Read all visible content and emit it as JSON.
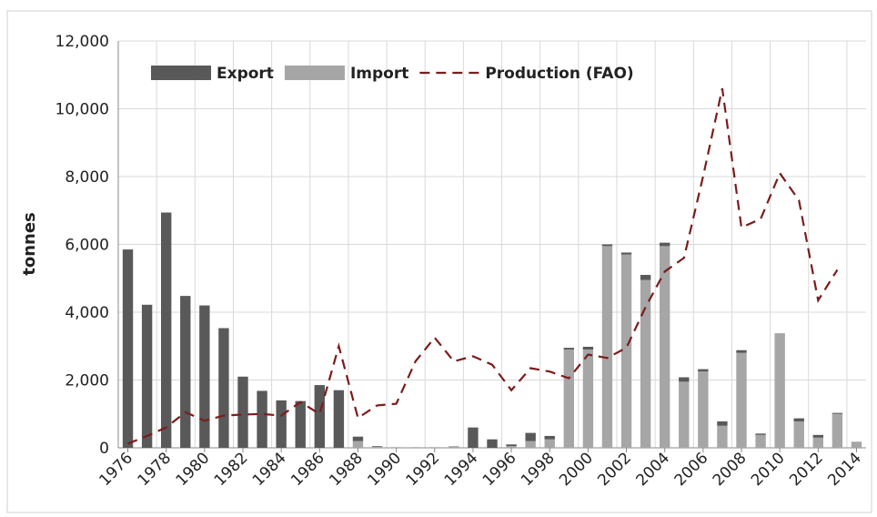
{
  "chart_data": {
    "type": "bar",
    "categories": [
      "1976",
      null,
      "1978",
      null,
      "1980",
      null,
      "1982",
      null,
      "1984",
      null,
      "1986",
      null,
      "1988",
      null,
      "1990",
      null,
      "1992",
      null,
      "1994",
      null,
      "1996",
      null,
      "1998",
      null,
      "2000",
      null,
      "2002",
      null,
      "2004",
      null,
      "2006",
      null,
      "2008",
      null,
      "2010",
      null,
      "2012",
      null,
      "2014"
    ],
    "ylabel": "tonnes",
    "ylim": [
      0,
      12000
    ],
    "yticks": [
      0,
      {
        "value": 2000,
        "label": "2,000"
      },
      {
        "value": 4000,
        "label": "4,000"
      },
      {
        "value": 6000,
        "label": "6,000"
      },
      {
        "value": 8000,
        "label": "8,000"
      },
      {
        "value": 10000,
        "label": "10,000"
      },
      {
        "value": 12000,
        "label": "12,000"
      }
    ],
    "grid": true,
    "legend": "top-left",
    "series": [
      {
        "name": "Import",
        "color": "#a6a6a6",
        "stack": true,
        "values": [
          0,
          0,
          0,
          0,
          0,
          0,
          0,
          0,
          0,
          0,
          0,
          0,
          200,
          30,
          20,
          20,
          20,
          50,
          0,
          0,
          50,
          200,
          250,
          2900,
          2900,
          5950,
          5700,
          4950,
          5950,
          1950,
          2250,
          650,
          2800,
          380,
          3380,
          780,
          300,
          1000,
          180
        ]
      },
      {
        "name": "Export",
        "color": "#595959",
        "stack": true,
        "values": [
          5850,
          4220,
          6940,
          4480,
          4200,
          3530,
          2100,
          1680,
          1400,
          1380,
          1850,
          1700,
          130,
          20,
          0,
          0,
          0,
          0,
          600,
          250,
          50,
          240,
          100,
          50,
          80,
          50,
          60,
          150,
          100,
          130,
          70,
          130,
          80,
          40,
          0,
          90,
          80,
          30,
          0
        ]
      },
      {
        "name": "Production (FAO)",
        "color": "#7b1c1c",
        "type": "line",
        "dashed": true,
        "values": [
          120,
          350,
          600,
          1050,
          800,
          950,
          980,
          1000,
          950,
          1350,
          1000,
          3000,
          880,
          1250,
          1300,
          2550,
          3250,
          2550,
          2700,
          2450,
          1700,
          2350,
          2250,
          2050,
          2750,
          2650,
          2950,
          4150,
          5200,
          5600,
          8000,
          10600,
          6500,
          6750,
          8100,
          7300,
          4350,
          5250,
          null
        ]
      }
    ]
  }
}
